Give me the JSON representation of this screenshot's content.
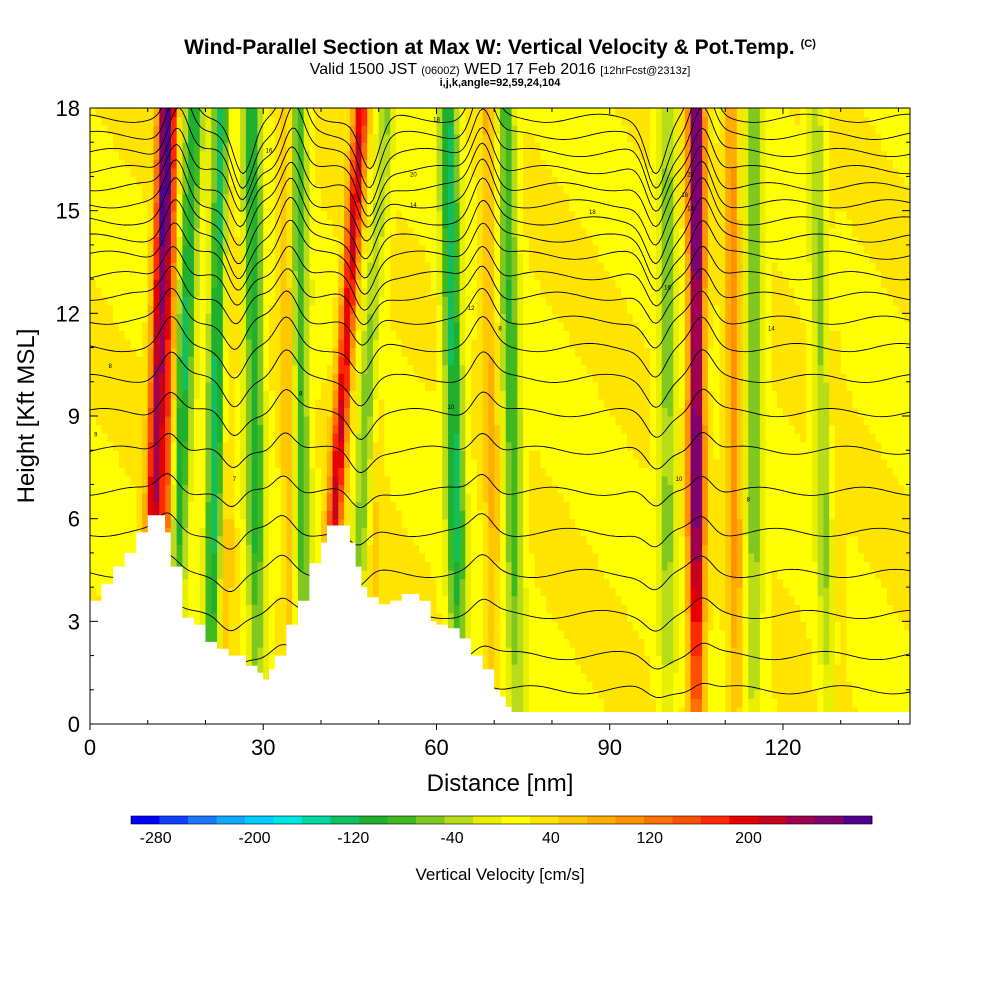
{
  "header": {
    "title": "Wind-Parallel Section at Max W: Vertical Velocity & Pot.Temp.",
    "copyright": "(C)",
    "valid_prefix": "Valid 1500 JST",
    "valid_zulu": "(0600Z)",
    "valid_date": "WED 17 Feb 2016",
    "forecast": "[12hrFcst@2313z]",
    "indices": "i,j,k,angle=92,59,24,104"
  },
  "chart_data": {
    "type": "heatmap",
    "title": "Wind-Parallel Section at Max W: Vertical Velocity & Pot.Temp.",
    "xlabel": "Distance [nm]",
    "ylabel": "Height [Kft MSL]",
    "xlim": [
      0,
      142
    ],
    "ylim": [
      0,
      18
    ],
    "xticks": [
      0,
      30,
      60,
      90,
      120
    ],
    "yticks": [
      0,
      3,
      6,
      9,
      12,
      15,
      18
    ],
    "colorbar": {
      "label": "Vertical Velocity [cm/s]",
      "tick_labels": [
        "-280",
        "-200",
        "-120",
        "-40",
        "40",
        "120",
        "200"
      ],
      "tick_values": [
        -280,
        -200,
        -120,
        -40,
        40,
        120,
        200
      ],
      "range": [
        -300,
        300
      ],
      "colors": [
        "#0000ff",
        "#1040ff",
        "#1878ff",
        "#10a8ff",
        "#00ccff",
        "#00e6e6",
        "#00d8a0",
        "#10c060",
        "#20b030",
        "#40b820",
        "#80c820",
        "#b8dc18",
        "#e8f000",
        "#ffff00",
        "#ffe400",
        "#ffc800",
        "#ffac00",
        "#ff9000",
        "#ff7000",
        "#ff5000",
        "#ff2800",
        "#e80000",
        "#c80020",
        "#a00050",
        "#800070",
        "#500090"
      ]
    },
    "updrafts": [
      {
        "x_base": 10,
        "x_top": 13,
        "peak": 240
      },
      {
        "x_base": 13,
        "x_top": 14,
        "peak": 160
      },
      {
        "x_base": 23,
        "x_top": 24,
        "peak": 100
      },
      {
        "x_base": 35,
        "x_top": 34,
        "peak": 90
      },
      {
        "x_base": 40,
        "x_top": 47,
        "peak": 220
      },
      {
        "x_base": 49,
        "x_top": 50,
        "peak": 60
      },
      {
        "x_base": 70,
        "x_top": 69,
        "peak": 80
      },
      {
        "x_base": 105,
        "x_top": 105,
        "peak": 300
      },
      {
        "x_base": 112,
        "x_top": 111,
        "peak": 110
      },
      {
        "x_base": 130,
        "x_top": 127,
        "peak": 60
      }
    ],
    "downdrafts": [
      {
        "x_base": 14,
        "x_top": 18,
        "peak": -120
      },
      {
        "x_base": 21,
        "x_top": 23,
        "peak": -150
      },
      {
        "x_base": 29,
        "x_top": 28,
        "peak": -110
      },
      {
        "x_base": 37,
        "x_top": 36,
        "peak": -90
      },
      {
        "x_base": 45,
        "x_top": 51,
        "peak": -70
      },
      {
        "x_base": 64,
        "x_top": 62,
        "peak": -130
      },
      {
        "x_base": 74,
        "x_top": 72,
        "peak": -90
      },
      {
        "x_base": 100,
        "x_top": 100,
        "peak": -60
      },
      {
        "x_base": 115,
        "x_top": 115,
        "peak": -70
      },
      {
        "x_base": 128,
        "x_top": 126,
        "peak": -60
      }
    ],
    "terrain_kft": [
      [
        0,
        3.6
      ],
      [
        2,
        4.1
      ],
      [
        4,
        4.6
      ],
      [
        6,
        5.0
      ],
      [
        8,
        5.6
      ],
      [
        10,
        6.1
      ],
      [
        11.5,
        6.1
      ],
      [
        13,
        5.6
      ],
      [
        14,
        4.6
      ],
      [
        16,
        3.1
      ],
      [
        18,
        2.9
      ],
      [
        20,
        2.4
      ],
      [
        22,
        2.2
      ],
      [
        24,
        2.0
      ],
      [
        27,
        1.7
      ],
      [
        29,
        1.5
      ],
      [
        30,
        1.3
      ],
      [
        31,
        1.6
      ],
      [
        32,
        2.0
      ],
      [
        34,
        2.9
      ],
      [
        36,
        3.6
      ],
      [
        38,
        4.7
      ],
      [
        40,
        5.3
      ],
      [
        41,
        5.8
      ],
      [
        44,
        5.8
      ],
      [
        45,
        5.3
      ],
      [
        46,
        4.6
      ],
      [
        47,
        4.0
      ],
      [
        48,
        3.7
      ],
      [
        50,
        3.5
      ],
      [
        52,
        3.6
      ],
      [
        54,
        3.8
      ],
      [
        56,
        3.8
      ],
      [
        57,
        3.6
      ],
      [
        59,
        3.0
      ],
      [
        60,
        2.9
      ],
      [
        62,
        2.8
      ],
      [
        64,
        2.5
      ],
      [
        66,
        2.0
      ],
      [
        68,
        1.6
      ],
      [
        70,
        1.0
      ],
      [
        71,
        0.8
      ],
      [
        72,
        0.5
      ],
      [
        73,
        0.35
      ],
      [
        142,
        0.35
      ]
    ],
    "isentropes": {
      "base_kft": [
        1.0,
        2.0,
        3.2,
        4.4,
        5.6,
        6.8,
        8.0,
        9.1,
        10.1,
        11.0,
        11.8,
        12.5,
        13.1,
        13.7,
        14.2,
        14.7,
        15.2,
        15.7,
        16.2,
        16.7,
        17.2,
        17.7
      ],
      "wave_centers": [
        13,
        24,
        33,
        46,
        68,
        98,
        106
      ],
      "labels": [
        "8",
        "9",
        "7",
        "8",
        "10",
        "10",
        "8",
        "14",
        "16",
        "18",
        "20",
        "14",
        "12",
        "8",
        "16",
        "14",
        "16",
        "18",
        "20"
      ]
    }
  },
  "axes": {
    "xlabel": "Distance [nm]",
    "ylabel": "Height [Kft MSL]"
  }
}
